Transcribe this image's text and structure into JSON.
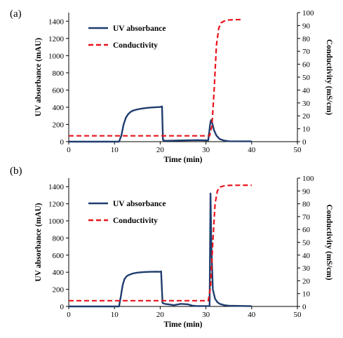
{
  "chart_data": [
    {
      "panel_label": "(a)",
      "type": "line",
      "xlabel": "Time (min)",
      "ylabel": "UV absorbance (mAU)",
      "y2label": "Conductivity (mS/cm)",
      "xlim": [
        0,
        50
      ],
      "ylim": [
        0,
        1500
      ],
      "y2lim": [
        0,
        100
      ],
      "xticks": [
        "0",
        "10",
        "20",
        "30",
        "40",
        "50"
      ],
      "yticks": [
        "0",
        "200",
        "400",
        "600",
        "800",
        "1000",
        "1200",
        "1400"
      ],
      "y2ticks": [
        "0",
        "10",
        "20",
        "30",
        "40",
        "50",
        "60",
        "70",
        "80",
        "90",
        "100"
      ],
      "legend_placement": "top-left",
      "series": [
        {
          "name": "UV absorbance",
          "axis": "left",
          "color": "#1f3d6e",
          "style": "solid",
          "x": [
            0,
            11,
            11.5,
            12,
            12.5,
            13,
            13.5,
            14,
            15,
            16,
            17,
            18,
            19,
            20,
            20.4,
            20.6,
            21,
            25,
            28,
            30.5,
            30.9,
            31.1,
            31.4,
            31.8,
            32.3,
            33,
            34,
            35,
            40
          ],
          "y": [
            0,
            0,
            70,
            200,
            280,
            320,
            345,
            360,
            375,
            385,
            392,
            397,
            400,
            403,
            410,
            20,
            10,
            15,
            18,
            15,
            200,
            250,
            210,
            130,
            70,
            30,
            12,
            5,
            3
          ]
        },
        {
          "name": "Conductivity",
          "axis": "right",
          "color": "#e8141b",
          "style": "dashed",
          "x": [
            0,
            30.8,
            31.3,
            31.8,
            32.3,
            32.8,
            33.3,
            34,
            35,
            36,
            38
          ],
          "y": [
            4.5,
            4.5,
            12,
            40,
            75,
            88,
            92,
            93.5,
            94.3,
            94.5,
            94.6
          ]
        }
      ]
    },
    {
      "panel_label": "(b)",
      "type": "line",
      "xlabel": "Time (min)",
      "ylabel": "UV absorbance (mAU)",
      "y2label": "Conductivity (mS/cm)",
      "xlim": [
        0,
        50
      ],
      "ylim": [
        0,
        1500
      ],
      "y2lim": [
        0,
        100
      ],
      "xticks": [
        "0",
        "10",
        "20",
        "30",
        "40",
        "50"
      ],
      "yticks": [
        "0",
        "200",
        "400",
        "600",
        "800",
        "1000",
        "1200",
        "1400"
      ],
      "y2ticks": [
        "0",
        "10",
        "20",
        "30",
        "40",
        "50",
        "60",
        "70",
        "80",
        "90",
        "100"
      ],
      "legend_placement": "top-left",
      "series": [
        {
          "name": "UV absorbance",
          "axis": "left",
          "color": "#1f3d6e",
          "style": "solid",
          "x": [
            0,
            11,
            11.4,
            11.8,
            12.2,
            12.6,
            13,
            14,
            15,
            16,
            17,
            18,
            19,
            20,
            20.2,
            20.5,
            21,
            23,
            24.5,
            26,
            27,
            28,
            30.8,
            31,
            31.2,
            31.5,
            32,
            32.5,
            33,
            34,
            35,
            40
          ],
          "y": [
            0,
            0,
            120,
            250,
            320,
            350,
            365,
            385,
            395,
            400,
            403,
            405,
            406,
            405,
            410,
            40,
            30,
            15,
            30,
            25,
            10,
            5,
            5,
            1320,
            700,
            200,
            90,
            50,
            30,
            15,
            8,
            3
          ]
        },
        {
          "name": "Conductivity",
          "axis": "right",
          "color": "#e8141b",
          "style": "dashed",
          "x": [
            0,
            30.5,
            31,
            31.5,
            32,
            32.5,
            33,
            34,
            35,
            36,
            40
          ],
          "y": [
            4.5,
            4.5,
            15,
            50,
            80,
            90,
            93,
            94,
            94.3,
            94.4,
            94.5
          ]
        }
      ]
    }
  ]
}
